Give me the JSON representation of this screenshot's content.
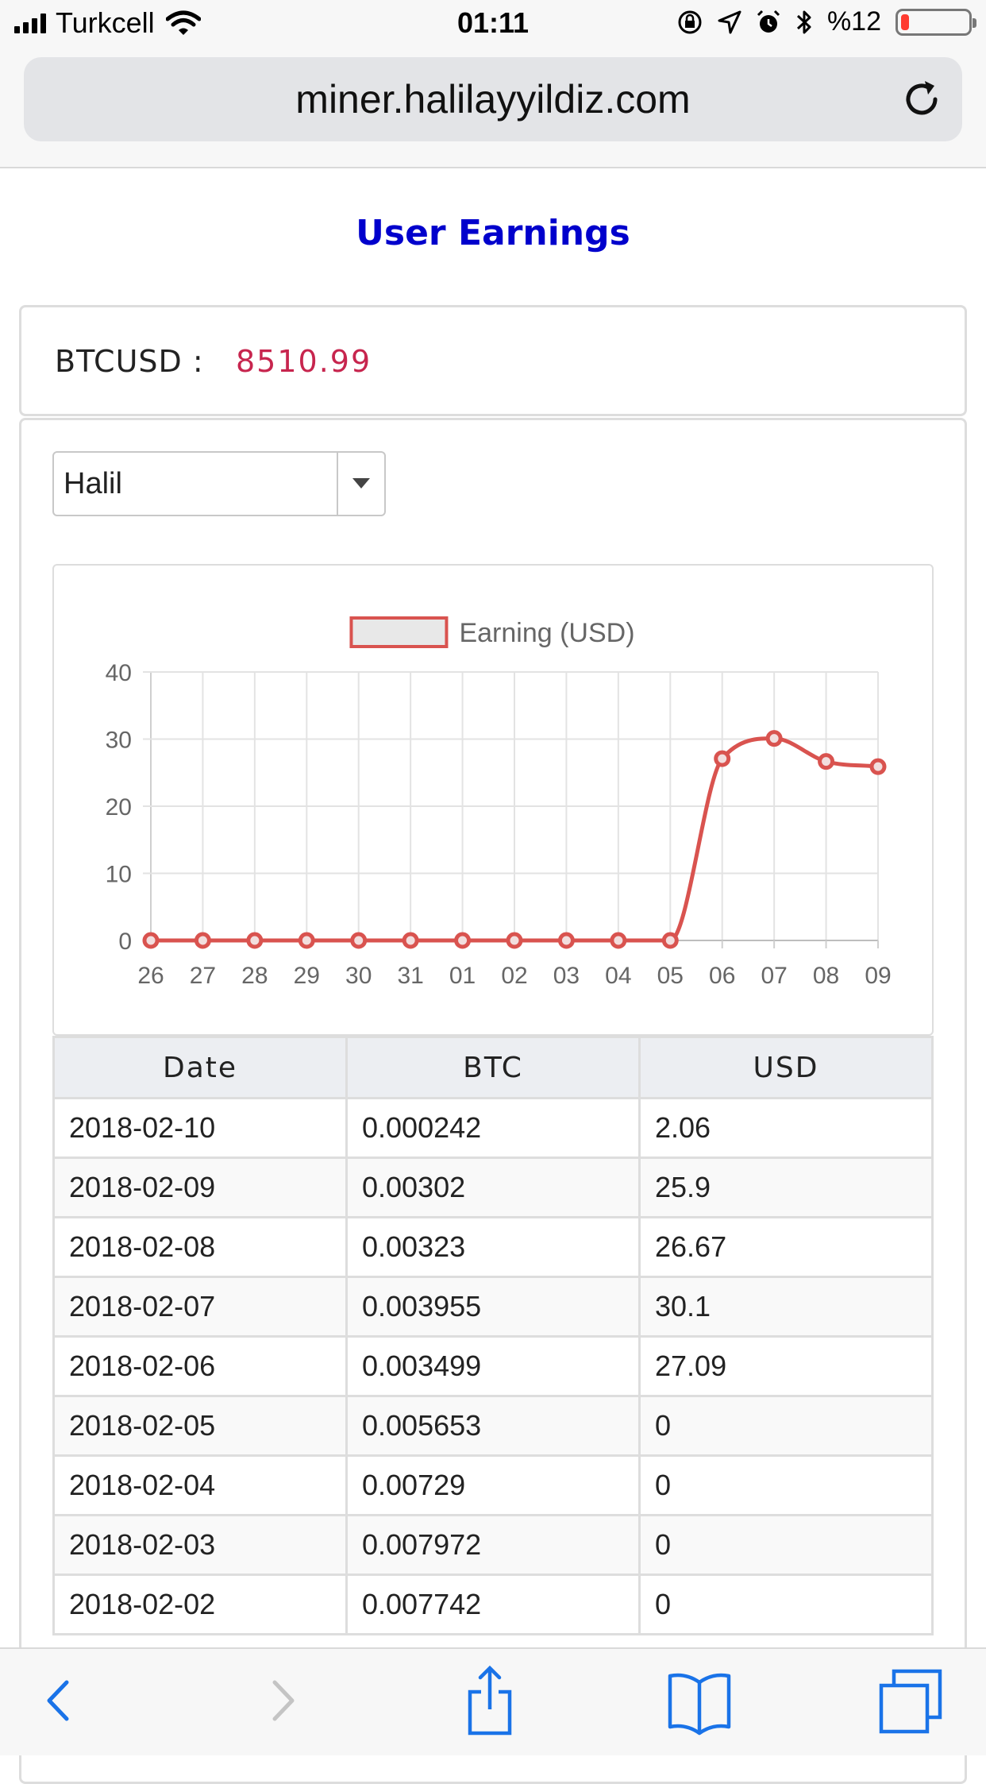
{
  "status_bar": {
    "carrier": "Turkcell",
    "time": "01:11",
    "battery_text": "%12",
    "battery_level": 0.12,
    "icons": [
      "signal-icon",
      "wifi-icon",
      "rotation-lock-icon",
      "location-icon",
      "alarm-icon",
      "bluetooth-icon",
      "battery-icon"
    ]
  },
  "browser": {
    "url": "miner.halilayyildiz.com",
    "reload_icon": "reload-icon",
    "toolbar_icons": [
      "back-icon",
      "forward-icon",
      "share-icon",
      "bookmarks-icon",
      "tabs-icon"
    ]
  },
  "page": {
    "title": "User Earnings",
    "ticker_label": "BTCUSD :",
    "ticker_value": "8510.99",
    "user_select": {
      "selected": "Halil"
    }
  },
  "chart_data": {
    "type": "line",
    "legend": "Earning (USD)",
    "categories": [
      "26",
      "27",
      "28",
      "29",
      "30",
      "31",
      "01",
      "02",
      "03",
      "04",
      "05",
      "06",
      "07",
      "08",
      "09"
    ],
    "series": [
      {
        "name": "Earning (USD)",
        "values": [
          0,
          0,
          0,
          0,
          0,
          0,
          0,
          0,
          0,
          0,
          0,
          27.09,
          30.1,
          26.67,
          25.9
        ]
      }
    ],
    "yticks": [
      "0",
      "10",
      "20",
      "30",
      "40"
    ],
    "ylim": [
      0,
      40
    ],
    "grid": true,
    "legend_position": "top",
    "colors": {
      "line": "#d9534f",
      "legend_fill": "#e8e8e8"
    }
  },
  "table": {
    "headers": [
      "Date",
      "BTC",
      "USD"
    ],
    "rows": [
      [
        "2018-02-10",
        "0.000242",
        "2.06"
      ],
      [
        "2018-02-09",
        "0.00302",
        "25.9"
      ],
      [
        "2018-02-08",
        "0.00323",
        "26.67"
      ],
      [
        "2018-02-07",
        "0.003955",
        "30.1"
      ],
      [
        "2018-02-06",
        "0.003499",
        "27.09"
      ],
      [
        "2018-02-05",
        "0.005653",
        "0"
      ],
      [
        "2018-02-04",
        "0.00729",
        "0"
      ],
      [
        "2018-02-03",
        "0.007972",
        "0"
      ],
      [
        "2018-02-02",
        "0.007742",
        "0"
      ]
    ]
  }
}
